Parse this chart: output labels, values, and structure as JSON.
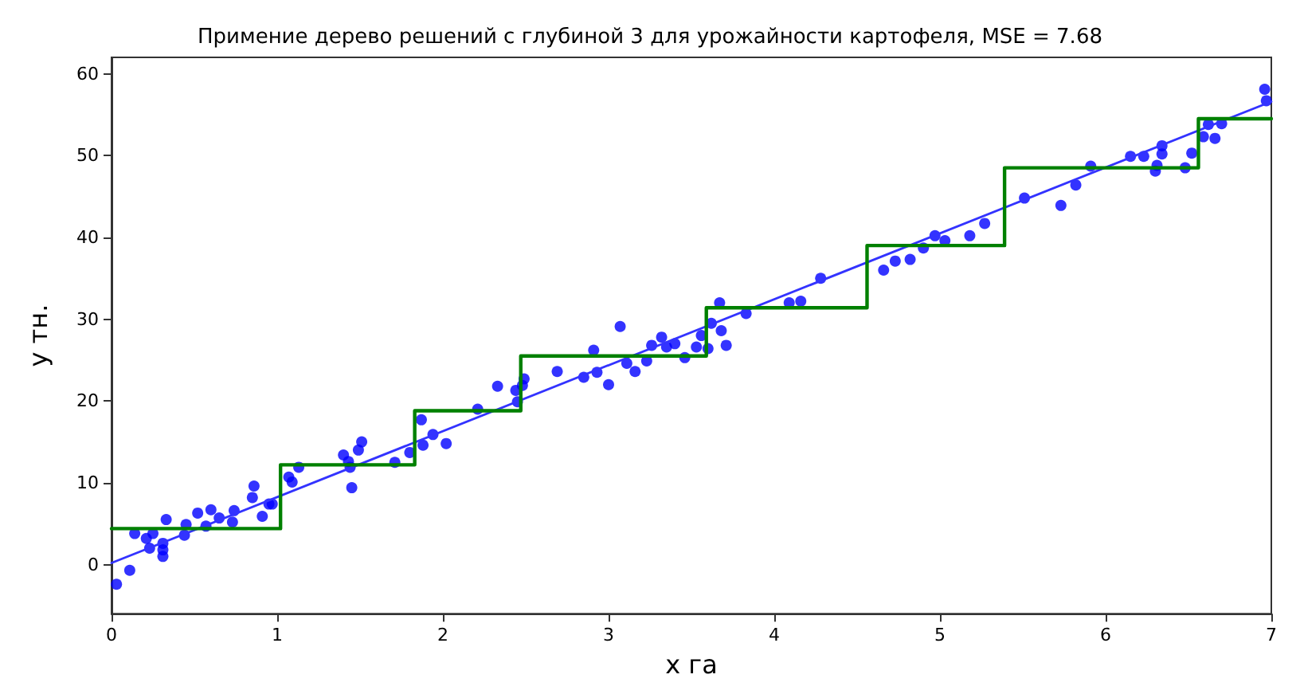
{
  "chart_data": {
    "type": "scatter",
    "title": "Примение дерево решений с глубиной 3 для урожайности картофеля, MSE = 7.68",
    "xlabel": "x га",
    "ylabel": "y тн.",
    "xlim": [
      0,
      7
    ],
    "xticks": [
      0,
      1,
      2,
      3,
      4,
      5,
      6,
      7
    ],
    "ylim": [
      -6,
      62
    ],
    "yticks": [
      0,
      10,
      20,
      30,
      40,
      50,
      60
    ],
    "grid": false,
    "marker": "circle",
    "series": [
      {
        "color": "#0000ff",
        "x": [
          0.03,
          0.11,
          0.14,
          0.21,
          0.25,
          0.23,
          0.31,
          0.31,
          0.31,
          0.33,
          0.44,
          0.45,
          0.52,
          0.57,
          0.6,
          0.65,
          0.73,
          0.74,
          0.85,
          0.86,
          0.91,
          0.95,
          0.97,
          1.07,
          1.09,
          1.13,
          1.4,
          1.44,
          1.45,
          1.43,
          1.49,
          1.51,
          1.71,
          1.8,
          1.88,
          1.87,
          1.94,
          2.02,
          2.21,
          2.33,
          2.44,
          2.45,
          2.49,
          2.48,
          2.69,
          2.85,
          2.91,
          2.93,
          3.0,
          3.07,
          3.11,
          3.16,
          3.23,
          3.26,
          3.32,
          3.35,
          3.4,
          3.46,
          3.53,
          3.56,
          3.6,
          3.62,
          3.67,
          3.68,
          3.71,
          3.83,
          4.09,
          4.16,
          4.28,
          4.66,
          4.73,
          4.82,
          4.9,
          4.97,
          5.03,
          5.18,
          5.27,
          5.51,
          5.73,
          5.82,
          5.91,
          6.15,
          6.23,
          6.34,
          6.34,
          6.31,
          6.3,
          6.48,
          6.52,
          6.59,
          6.62,
          6.66,
          6.7,
          6.96,
          6.97
        ],
        "values": [
          -2.4,
          -0.7,
          3.8,
          3.2,
          3.8,
          2.0,
          1.0,
          1.8,
          2.6,
          5.5,
          3.6,
          4.9,
          6.3,
          4.7,
          6.7,
          5.7,
          5.2,
          6.6,
          8.2,
          9.6,
          5.9,
          7.4,
          7.4,
          10.7,
          10.1,
          11.9,
          13.4,
          11.9,
          9.4,
          12.6,
          14.0,
          15.0,
          12.5,
          13.7,
          14.6,
          17.7,
          15.9,
          14.8,
          19.0,
          21.8,
          21.3,
          19.9,
          22.7,
          21.9,
          23.6,
          22.9,
          26.2,
          23.5,
          22.0,
          29.1,
          24.6,
          23.6,
          24.9,
          26.8,
          27.8,
          26.6,
          27.0,
          25.3,
          26.6,
          28.0,
          26.4,
          29.5,
          32.0,
          28.6,
          26.8,
          30.7,
          32.0,
          32.2,
          35.0,
          36.0,
          37.1,
          37.3,
          38.7,
          40.2,
          39.6,
          40.2,
          41.7,
          44.8,
          43.9,
          46.4,
          48.7,
          49.9,
          49.9,
          51.2,
          50.2,
          48.8,
          48.1,
          48.5,
          50.3,
          52.3,
          53.8,
          52.1,
          53.9,
          58.1,
          56.7
        ]
      },
      {
        "type": "line",
        "color": "#3333ff",
        "marker": "none",
        "x": [
          0,
          7
        ],
        "values": [
          0.2,
          56.6
        ]
      },
      {
        "type": "line",
        "color": "#008000",
        "marker": "none",
        "x": [
          0,
          1.02,
          1.02,
          1.83,
          1.83,
          2.47,
          2.47,
          3.59,
          3.59,
          4.56,
          4.56,
          5.39,
          5.39,
          6.56,
          6.56,
          7
        ],
        "values": [
          4.4,
          4.4,
          12.2,
          12.2,
          18.8,
          18.8,
          25.5,
          25.5,
          31.4,
          31.4,
          39.0,
          39.0,
          48.5,
          48.5,
          54.5,
          54.5
        ]
      }
    ]
  }
}
